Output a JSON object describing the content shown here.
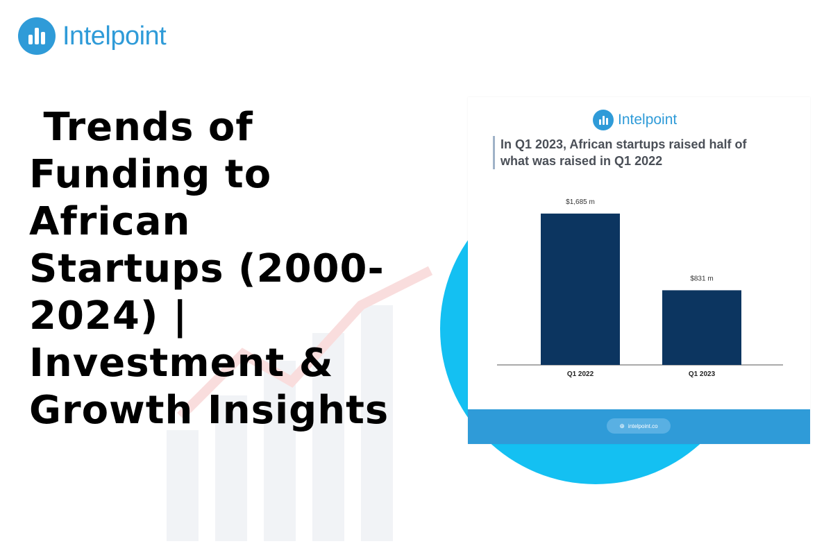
{
  "brand": {
    "name": "Intelpoint",
    "icon": "bar-chart-logo-icon",
    "color": "#2f9bd8"
  },
  "headline": {
    "lines": [
      " Trends of",
      "Funding to",
      "African",
      "Startups (2000-",
      "2024) |",
      "Investment &",
      "Growth Insights"
    ]
  },
  "card": {
    "brand_name": "Intelpoint",
    "title_lines": [
      "In Q1 2023, African startups raised half of",
      "what was raised in Q1 2022"
    ],
    "footer": {
      "site": "intelpoint.co",
      "icon": "globe-icon"
    }
  },
  "chart_data": {
    "type": "bar",
    "categories": [
      "Q1 2022",
      "Q1 2023"
    ],
    "values": [
      1685,
      831
    ],
    "data_labels": [
      "$1,685 m",
      "$831 m"
    ],
    "title": "In Q1 2023, African startups raised half of what was raised in Q1 2022",
    "xlabel": "",
    "ylabel": "",
    "ylim": [
      0,
      1900
    ],
    "bar_color": "#0c3560",
    "grid": false,
    "legend": "none"
  },
  "colors": {
    "accent": "#2f9bd8",
    "circle": "#14c0f2",
    "bar": "#0c3560"
  }
}
